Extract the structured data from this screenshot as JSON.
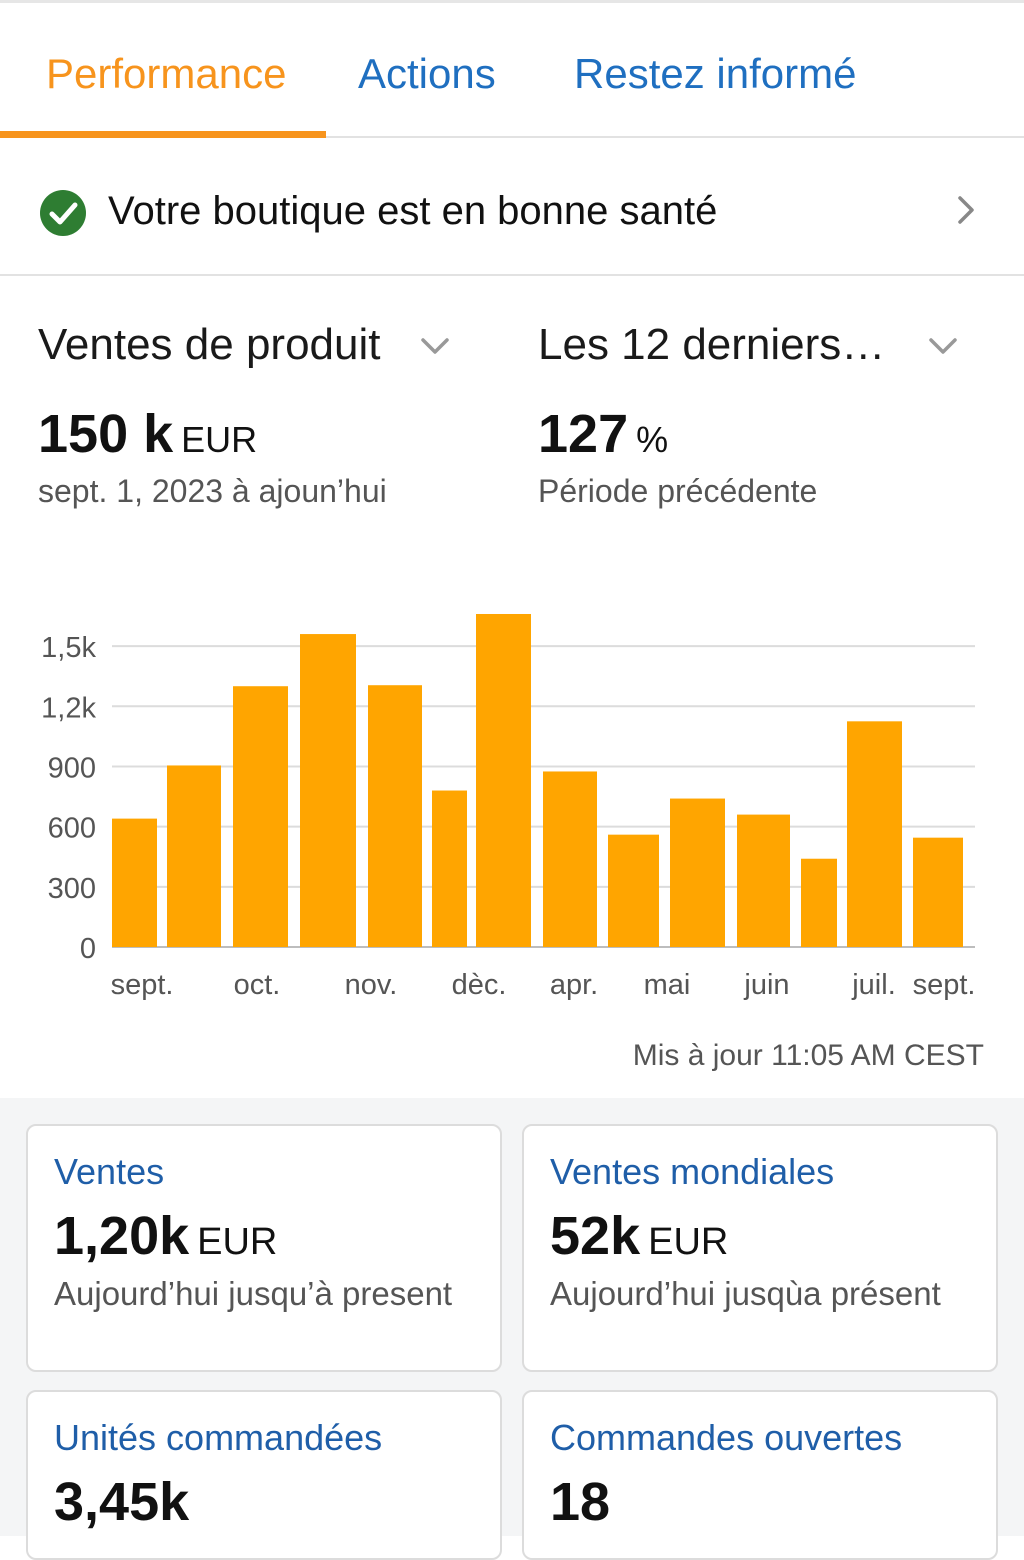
{
  "tabs": [
    {
      "label": "Performance",
      "active": true
    },
    {
      "label": "Actions",
      "active": false
    },
    {
      "label": "Restez informé",
      "active": false
    }
  ],
  "health": {
    "text": "Votre boutique est en bonne santé",
    "icon": "check-circle-icon"
  },
  "metric_selector": {
    "label": "Ventes de produit"
  },
  "period_selector": {
    "label": "Les 12 derniers…"
  },
  "summary": {
    "sales_value": "150 k",
    "sales_unit": "EUR",
    "sales_period": "sept. 1, 2023 à ajoun’hui",
    "growth_value": "127",
    "growth_unit": "%",
    "growth_label": "Période précédente"
  },
  "chart_data": {
    "type": "bar",
    "x": [
      "",
      "",
      "",
      "",
      "",
      "",
      "",
      "",
      "",
      "",
      "",
      "",
      "",
      ""
    ],
    "values": [
      640,
      905,
      1300,
      1560,
      1305,
      780,
      1660,
      875,
      560,
      740,
      660,
      440,
      1125,
      545
    ],
    "x_tick_labels": [
      "sept.",
      "oct.",
      "nov.",
      "dèc.",
      "apr.",
      "mai",
      "juin",
      "juil.",
      "sept."
    ],
    "y_ticks": [
      "0",
      "300",
      "600",
      "900",
      "1,2k",
      "1,5k"
    ],
    "y_tick_values": [
      0,
      300,
      600,
      900,
      1200,
      1500
    ],
    "ylim": [
      0,
      1650
    ],
    "bar_color": "#ffa500",
    "grid": true
  },
  "updated_text": "Mis à jour 11:05 AM CEST",
  "cards": [
    {
      "title": "Ventes",
      "value": "1,20k",
      "unit": "EUR",
      "sub": "Aujourd’hui jusqu’à present"
    },
    {
      "title": "Ventes mondiales",
      "value": "52k",
      "unit": "EUR",
      "sub": "Aujourd’hui jusqùa présent"
    },
    {
      "title": "Unités commandées",
      "value": "3,45k",
      "unit": "",
      "sub": ""
    },
    {
      "title": "Commandes ouvertes",
      "value": "18",
      "unit": "",
      "sub": ""
    }
  ],
  "colors": {
    "accent": "#f7941d",
    "link": "#1f6fc0",
    "card_title": "#1f5ea8",
    "bar": "#ffa500",
    "success": "#2e7d32"
  }
}
